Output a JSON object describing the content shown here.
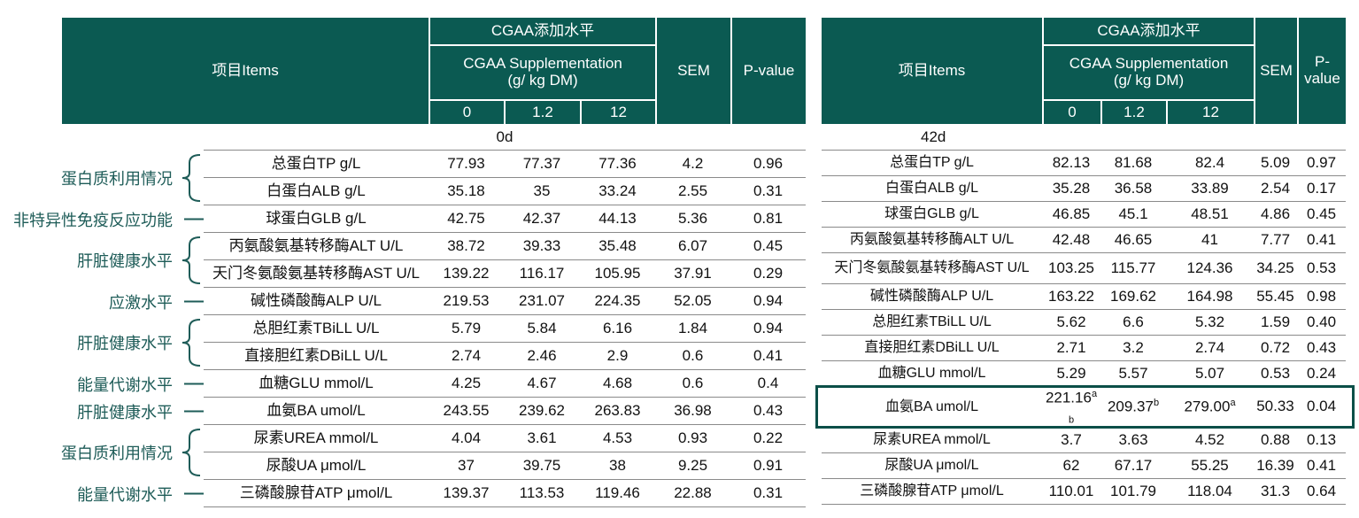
{
  "left": {
    "header": {
      "items": "项目Items",
      "group_cn": "CGAA添加水平",
      "group_en": [
        "CGAA Supplementation",
        "(g/ kg DM)"
      ],
      "levels": [
        "0",
        "1.2",
        "12"
      ],
      "sem": "SEM",
      "p": "P-value"
    },
    "period": "0d",
    "groups": [
      {
        "label": "蛋白质利用情况",
        "rows": [
          [
            "总蛋白TP g/L",
            "77.93",
            "77.37",
            "77.36",
            "4.2",
            "0.96"
          ],
          [
            "白蛋白ALB g/L",
            "35.18",
            "35",
            "33.24",
            "2.55",
            "0.31"
          ]
        ]
      },
      {
        "label": "非特异性免疫反应功能",
        "rows": [
          [
            "球蛋白GLB g/L",
            "42.75",
            "42.37",
            "44.13",
            "5.36",
            "0.81"
          ]
        ]
      },
      {
        "label": "肝脏健康水平",
        "rows": [
          [
            "丙氨酸氨基转移酶ALT U/L",
            "38.72",
            "39.33",
            "35.48",
            "6.07",
            "0.45"
          ],
          [
            "天门冬氨酸氨基转移酶AST U/L",
            "139.22",
            "116.17",
            "105.95",
            "37.91",
            "0.29"
          ]
        ]
      },
      {
        "label": "应激水平",
        "rows": [
          [
            "碱性磷酸酶ALP U/L",
            "219.53",
            "231.07",
            "224.35",
            "52.05",
            "0.94"
          ]
        ]
      },
      {
        "label": "肝脏健康水平",
        "rows": [
          [
            "总胆红素TBiLL U/L",
            "5.79",
            "5.84",
            "6.16",
            "1.84",
            "0.94"
          ],
          [
            "直接胆红素DBiLL U/L",
            "2.74",
            "2.46",
            "2.9",
            "0.6",
            "0.41"
          ]
        ]
      },
      {
        "label": "能量代谢水平",
        "rows": [
          [
            "血糖GLU mmol/L",
            "4.25",
            "4.67",
            "4.68",
            "0.6",
            "0.4"
          ]
        ]
      },
      {
        "label": "肝脏健康水平",
        "rows": [
          [
            "血氨BA umol/L",
            "243.55",
            "239.62",
            "263.83",
            "36.98",
            "0.43"
          ]
        ]
      },
      {
        "label": "蛋白质利用情况",
        "rows": [
          [
            "尿素UREA mmol/L",
            "4.04",
            "3.61",
            "4.53",
            "0.93",
            "0.22"
          ],
          [
            "尿酸UA μmol/L",
            "37",
            "39.75",
            "38",
            "9.25",
            "0.91"
          ]
        ]
      },
      {
        "label": "能量代谢水平",
        "rows": [
          [
            "三磷酸腺苷ATP μmol/L",
            "139.37",
            "113.53",
            "119.46",
            "22.88",
            "0.31"
          ]
        ]
      }
    ]
  },
  "right": {
    "header": {
      "items": "项目Items",
      "group_cn": "CGAA添加水平",
      "group_en": [
        "CGAA Supplementation",
        "(g/ kg DM)"
      ],
      "levels": [
        "0",
        "1.2",
        "12"
      ],
      "sem": "SEM",
      "p": "P-value"
    },
    "period": "42d",
    "rows": [
      [
        "总蛋白TP g/L",
        "82.13",
        "81.68",
        "82.4",
        "5.09",
        "0.97"
      ],
      [
        "白蛋白ALB g/L",
        "35.28",
        "36.58",
        "33.89",
        "2.54",
        "0.17"
      ],
      [
        "球蛋白GLB g/L",
        "46.85",
        "45.1",
        "48.51",
        "4.86",
        "0.45"
      ],
      [
        "丙氨酸氨基转移酶ALT U/L",
        "42.48",
        "46.65",
        "41",
        "7.77",
        "0.41"
      ],
      [
        "天门冬氨酸氨基转移酶AST U/L",
        "103.25",
        "115.77",
        "124.36",
        "34.25",
        "0.53"
      ],
      [
        "碱性磷酸酶ALP U/L",
        "163.22",
        "169.62",
        "164.98",
        "55.45",
        "0.98"
      ],
      [
        "总胆红素TBiLL U/L",
        "5.62",
        "6.6",
        "5.32",
        "1.59",
        "0.40"
      ],
      [
        "直接胆红素DBiLL U/L",
        "2.71",
        "3.2",
        "2.74",
        "0.72",
        "0.43"
      ],
      [
        "血糖GLU mmol/L",
        "5.29",
        "5.57",
        "5.07",
        "0.53",
        "0.24"
      ],
      [
        "血氨BA umol/L",
        {
          "value": "221.16",
          "sup": "a",
          "sub": "b"
        },
        {
          "value": "209.37",
          "sup": "b"
        },
        {
          "value": "279.00",
          "sup": "a"
        },
        "50.33",
        "0.04"
      ],
      [
        "尿素UREA mmol/L",
        "3.7",
        "3.63",
        "4.52",
        "0.88",
        "0.13"
      ],
      [
        "尿酸UA μmol/L",
        "62",
        "67.17",
        "55.25",
        "16.39",
        "0.41"
      ],
      [
        "三磷酸腺苷ATP μmol/L",
        "110.01",
        "101.79",
        "118.04",
        "31.3",
        "0.64"
      ]
    ]
  }
}
